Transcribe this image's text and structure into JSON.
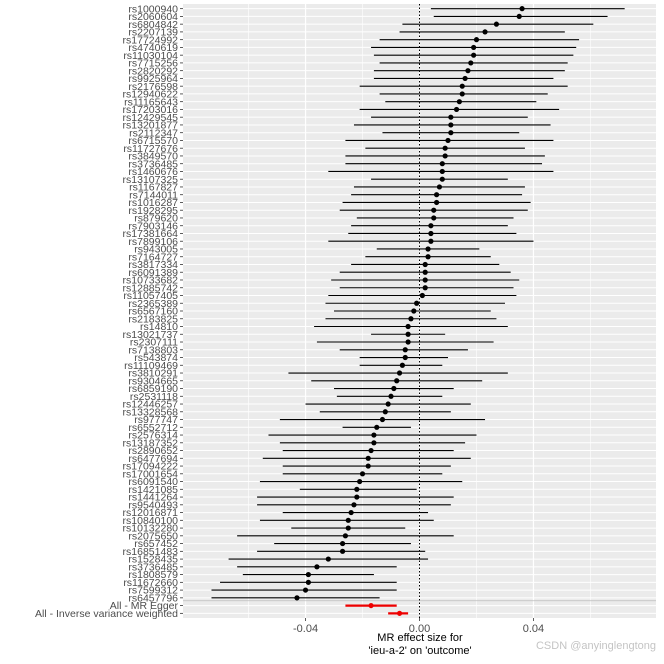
{
  "chart_data": {
    "type": "forest",
    "xlabel_line1": "MR effect size for",
    "xlabel_line2": "'ieu-a-2' on 'outcome'",
    "xlim": [
      -0.083,
      0.083
    ],
    "xticks": [
      -0.04,
      0.0,
      0.04
    ],
    "xtick_labels": [
      "-0.04",
      "0.00",
      "0.04"
    ],
    "reference_line": 0,
    "snps": [
      {
        "label": "rs1000940",
        "b": 0.036,
        "lo": 0.004,
        "hi": 0.072
      },
      {
        "label": "rs2060604",
        "b": 0.035,
        "lo": 0.005,
        "hi": 0.066
      },
      {
        "label": "rs6804842",
        "b": 0.027,
        "lo": -0.006,
        "hi": 0.061
      },
      {
        "label": "rs2207139",
        "b": 0.023,
        "lo": -0.007,
        "hi": 0.051
      },
      {
        "label": "rs17724992",
        "b": 0.02,
        "lo": -0.014,
        "hi": 0.056
      },
      {
        "label": "rs4740619",
        "b": 0.019,
        "lo": -0.017,
        "hi": 0.055
      },
      {
        "label": "rs11030104",
        "b": 0.019,
        "lo": -0.016,
        "hi": 0.054
      },
      {
        "label": "rs7715256",
        "b": 0.018,
        "lo": -0.014,
        "hi": 0.052
      },
      {
        "label": "rs2820292",
        "b": 0.017,
        "lo": -0.016,
        "hi": 0.051
      },
      {
        "label": "rs9925964",
        "b": 0.016,
        "lo": -0.016,
        "hi": 0.047
      },
      {
        "label": "rs2176598",
        "b": 0.015,
        "lo": -0.021,
        "hi": 0.052
      },
      {
        "label": "rs12940622",
        "b": 0.015,
        "lo": -0.014,
        "hi": 0.045
      },
      {
        "label": "rs11165643",
        "b": 0.014,
        "lo": -0.012,
        "hi": 0.041
      },
      {
        "label": "rs17203016",
        "b": 0.013,
        "lo": -0.021,
        "hi": 0.049
      },
      {
        "label": "rs12429545",
        "b": 0.011,
        "lo": -0.017,
        "hi": 0.038
      },
      {
        "label": "rs13201877",
        "b": 0.011,
        "lo": -0.023,
        "hi": 0.046
      },
      {
        "label": "rs2112347",
        "b": 0.011,
        "lo": -0.013,
        "hi": 0.035
      },
      {
        "label": "rs6715570",
        "b": 0.01,
        "lo": -0.026,
        "hi": 0.047
      },
      {
        "label": "rs11727676",
        "b": 0.009,
        "lo": -0.019,
        "hi": 0.037
      },
      {
        "label": "rs3849570",
        "b": 0.009,
        "lo": -0.026,
        "hi": 0.044
      },
      {
        "label": "rs3736485",
        "b": 0.008,
        "lo": -0.026,
        "hi": 0.043
      },
      {
        "label": "rs1460676",
        "b": 0.008,
        "lo": -0.032,
        "hi": 0.047
      },
      {
        "label": "rs13107325",
        "b": 0.008,
        "lo": -0.017,
        "hi": 0.031
      },
      {
        "label": "rs1167827",
        "b": 0.007,
        "lo": -0.023,
        "hi": 0.037
      },
      {
        "label": "rs7144011",
        "b": 0.006,
        "lo": -0.024,
        "hi": 0.036
      },
      {
        "label": "rs1016287",
        "b": 0.006,
        "lo": -0.027,
        "hi": 0.039
      },
      {
        "label": "rs1928295",
        "b": 0.005,
        "lo": -0.028,
        "hi": 0.038
      },
      {
        "label": "rs879620",
        "b": 0.005,
        "lo": -0.022,
        "hi": 0.033
      },
      {
        "label": "rs7903146",
        "b": 0.004,
        "lo": -0.024,
        "hi": 0.031
      },
      {
        "label": "rs17381664",
        "b": 0.004,
        "lo": -0.025,
        "hi": 0.034
      },
      {
        "label": "rs7899106",
        "b": 0.004,
        "lo": -0.032,
        "hi": 0.04
      },
      {
        "label": "rs943005",
        "b": 0.003,
        "lo": -0.015,
        "hi": 0.021
      },
      {
        "label": "rs7164727",
        "b": 0.003,
        "lo": -0.019,
        "hi": 0.025
      },
      {
        "label": "rs3817334",
        "b": 0.002,
        "lo": -0.024,
        "hi": 0.028
      },
      {
        "label": "rs6091389",
        "b": 0.002,
        "lo": -0.028,
        "hi": 0.032
      },
      {
        "label": "rs10733682",
        "b": 0.002,
        "lo": -0.031,
        "hi": 0.035
      },
      {
        "label": "rs12885742",
        "b": 0.002,
        "lo": -0.028,
        "hi": 0.033
      },
      {
        "label": "rs11057405",
        "b": 0.001,
        "lo": -0.032,
        "hi": 0.034
      },
      {
        "label": "rs2365389",
        "b": -0.001,
        "lo": -0.033,
        "hi": 0.03
      },
      {
        "label": "rs6567160",
        "b": -0.002,
        "lo": -0.03,
        "hi": 0.025
      },
      {
        "label": "rs2183825",
        "b": -0.003,
        "lo": -0.033,
        "hi": 0.027
      },
      {
        "label": "rs14810",
        "b": -0.004,
        "lo": -0.037,
        "hi": 0.031
      },
      {
        "label": "rs13021737",
        "b": -0.004,
        "lo": -0.017,
        "hi": 0.009
      },
      {
        "label": "rs2307111",
        "b": -0.004,
        "lo": -0.036,
        "hi": 0.026
      },
      {
        "label": "rs7138803",
        "b": -0.005,
        "lo": -0.028,
        "hi": 0.017
      },
      {
        "label": "rs543874",
        "b": -0.005,
        "lo": -0.021,
        "hi": 0.01
      },
      {
        "label": "rs11109469",
        "b": -0.006,
        "lo": -0.021,
        "hi": 0.008
      },
      {
        "label": "rs3810291",
        "b": -0.007,
        "lo": -0.046,
        "hi": 0.031
      },
      {
        "label": "rs9304665",
        "b": -0.008,
        "lo": -0.038,
        "hi": 0.022
      },
      {
        "label": "rs6859190",
        "b": -0.009,
        "lo": -0.03,
        "hi": 0.012
      },
      {
        "label": "rs2531118",
        "b": -0.01,
        "lo": -0.029,
        "hi": 0.008
      },
      {
        "label": "rs12446257",
        "b": -0.011,
        "lo": -0.04,
        "hi": 0.018
      },
      {
        "label": "rs13328568",
        "b": -0.012,
        "lo": -0.035,
        "hi": 0.011
      },
      {
        "label": "rs977747",
        "b": -0.013,
        "lo": -0.049,
        "hi": 0.023
      },
      {
        "label": "rs6552712",
        "b": -0.015,
        "lo": -0.027,
        "hi": -0.003
      },
      {
        "label": "rs2576314",
        "b": -0.016,
        "lo": -0.053,
        "hi": 0.02
      },
      {
        "label": "rs13187352",
        "b": -0.016,
        "lo": -0.049,
        "hi": 0.016
      },
      {
        "label": "rs2890652",
        "b": -0.017,
        "lo": -0.048,
        "hi": 0.012
      },
      {
        "label": "rs6477694",
        "b": -0.018,
        "lo": -0.055,
        "hi": 0.018
      },
      {
        "label": "rs17094222",
        "b": -0.018,
        "lo": -0.048,
        "hi": 0.011
      },
      {
        "label": "rs17001654",
        "b": -0.02,
        "lo": -0.048,
        "hi": 0.008
      },
      {
        "label": "rs6091540",
        "b": -0.021,
        "lo": -0.056,
        "hi": 0.015
      },
      {
        "label": "rs1421085",
        "b": -0.022,
        "lo": -0.042,
        "hi": -0.001
      },
      {
        "label": "rs1441264",
        "b": -0.022,
        "lo": -0.057,
        "hi": 0.012
      },
      {
        "label": "rs9540493",
        "b": -0.023,
        "lo": -0.057,
        "hi": 0.011
      },
      {
        "label": "rs12016871",
        "b": -0.024,
        "lo": -0.048,
        "hi": 0.003
      },
      {
        "label": "rs10840100",
        "b": -0.025,
        "lo": -0.056,
        "hi": 0.005
      },
      {
        "label": "rs10132280",
        "b": -0.025,
        "lo": -0.045,
        "hi": -0.005
      },
      {
        "label": "rs2075650",
        "b": -0.026,
        "lo": -0.064,
        "hi": 0.012
      },
      {
        "label": "rs657452",
        "b": -0.027,
        "lo": -0.051,
        "hi": -0.003
      },
      {
        "label": "rs16851483",
        "b": -0.027,
        "lo": -0.057,
        "hi": 0.002
      },
      {
        "label": "rs1528435",
        "b": -0.032,
        "lo": -0.067,
        "hi": 0.003
      },
      {
        "label": "rs3736485",
        "b": -0.036,
        "lo": -0.064,
        "hi": -0.008
      },
      {
        "label": "rs1808579",
        "b": -0.039,
        "lo": -0.062,
        "hi": -0.016
      },
      {
        "label": "rs11672660",
        "b": -0.039,
        "lo": -0.07,
        "hi": -0.008
      },
      {
        "label": "rs7599312",
        "b": -0.04,
        "lo": -0.073,
        "hi": -0.008
      },
      {
        "label": "rs6457796",
        "b": -0.043,
        "lo": -0.073,
        "hi": -0.014
      }
    ],
    "snps_last_label_note": "",
    "summary": [
      {
        "label": "All - MR Egger",
        "b": -0.017,
        "lo": -0.026,
        "hi": -0.008,
        "color": "#ee0000"
      },
      {
        "label": "All - Inverse variance weighted",
        "b": -0.007,
        "lo": -0.011,
        "hi": -0.004,
        "color": "#ee0000"
      }
    ],
    "panel_background": "#ebebeb",
    "grid_color": "#ffffff",
    "point_color": "#000000"
  },
  "watermark": "CSDN @anyinglengtong"
}
